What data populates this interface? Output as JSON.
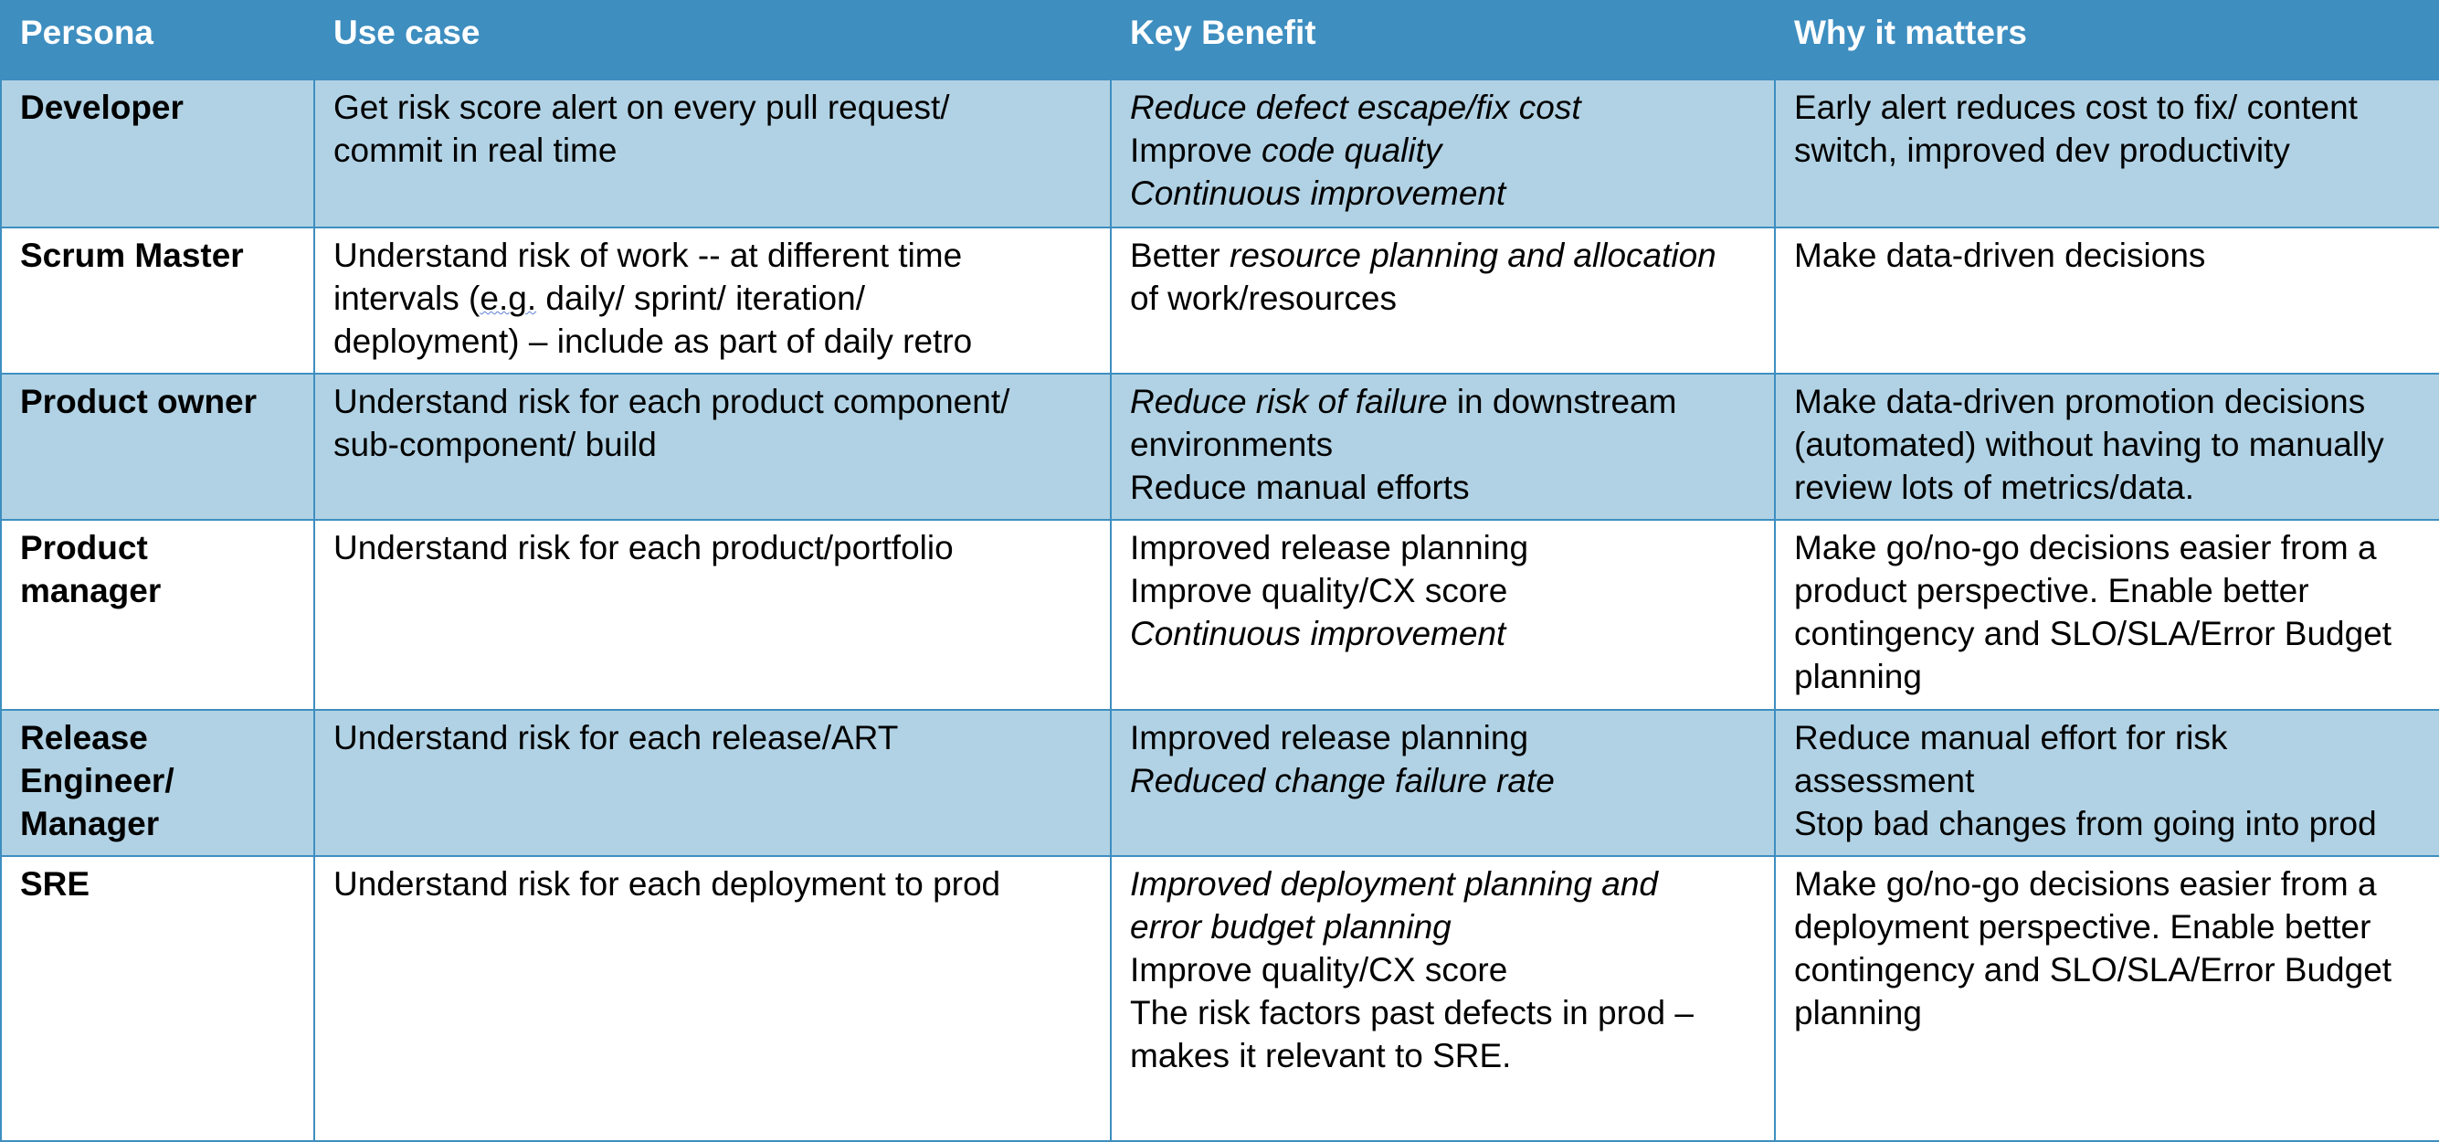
{
  "header": {
    "persona": "Persona",
    "use_case": "Use case",
    "key_benefit": "Key Benefit",
    "why": "Why it matters"
  },
  "rows": [
    {
      "persona": "Developer",
      "use_case": {
        "l1": "Get risk score alert on every pull request/",
        "l2": "commit in real time"
      },
      "benefit": {
        "l1": "Reduce defect escape/fix cost",
        "l2a": "Improve ",
        "l2b": "code quality",
        "l3": "Continuous improvement"
      },
      "why": {
        "l1": "Early alert reduces cost to fix/ content",
        "l2": "switch, improved dev productivity"
      }
    },
    {
      "persona": "Scrum Master",
      "use_case": {
        "l1": "Understand risk of work -- at different time",
        "l2a": "intervals (",
        "l2b": "e.g.",
        "l2c": " daily/ sprint/ iteration/",
        "l3": "deployment) – include as part of daily retro"
      },
      "benefit": {
        "l1a": "Better ",
        "l1b": "resource planning and allocation",
        "l2": "of work/resources"
      },
      "why": {
        "l1": "Make data-driven decisions"
      }
    },
    {
      "persona": "Product owner",
      "use_case": {
        "l1": "Understand risk for each product component/",
        "l2": "sub-component/ build"
      },
      "benefit": {
        "l1a": "Reduce risk of failure",
        "l1b": " in downstream",
        "l2": "environments",
        "l3": "Reduce manual efforts"
      },
      "why": {
        "l1": "Make data-driven promotion decisions",
        "l2": "(automated) without having to manually",
        "l3": "review lots of metrics/data."
      }
    },
    {
      "persona": {
        "l1": "Product",
        "l2": "manager"
      },
      "use_case": {
        "l1": "Understand risk for each product/portfolio"
      },
      "benefit": {
        "l1": "Improved release planning",
        "l2": "Improve quality/CX score",
        "l3": "Continuous improvement"
      },
      "why": {
        "l1": "Make go/no-go decisions easier from a",
        "l2": "product perspective. Enable better",
        "l3": "contingency and SLO/SLA/Error Budget",
        "l4": "planning"
      }
    },
    {
      "persona": {
        "l1": "Release",
        "l2": "Engineer/",
        "l3": "Manager"
      },
      "use_case": {
        "l1": "Understand risk for each release/ART"
      },
      "benefit": {
        "l1": "Improved release planning",
        "l2": "Reduced change failure rate"
      },
      "why": {
        "l1": "Reduce manual effort for risk",
        "l2": "assessment",
        "l3": "Stop bad changes from going into prod"
      }
    },
    {
      "persona": "SRE",
      "use_case": {
        "l1": "Understand risk for each deployment to prod"
      },
      "benefit": {
        "l1": "Improved deployment planning and",
        "l2": "error budget planning",
        "l3": "Improve quality/CX score",
        "l4": "The risk factors past defects in prod –",
        "l5": "makes it relevant to SRE."
      },
      "why": {
        "l1": "Make go/no-go decisions easier from a",
        "l2": "deployment perspective. Enable better",
        "l3": "contingency and SLO/SLA/Error Budget",
        "l4": "planning"
      }
    }
  ],
  "colors": {
    "header_bg": "#3e8ec0",
    "row_shade": "#b1d2e4",
    "border": "#3e8ec0"
  }
}
